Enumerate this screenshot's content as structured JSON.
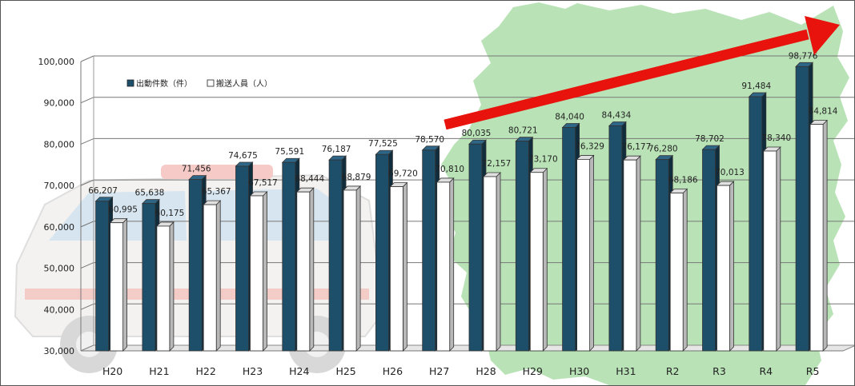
{
  "chart_data": {
    "type": "bar",
    "categories": [
      "H20",
      "H21",
      "H22",
      "H23",
      "H24",
      "H25",
      "H26",
      "H27",
      "H28",
      "H29",
      "H30",
      "H31",
      "R2",
      "R3",
      "R4",
      "R5"
    ],
    "series": [
      {
        "name": "出動件数（件）",
        "values": [
          66207,
          65638,
          71456,
          74675,
          75591,
          76187,
          77525,
          78570,
          80035,
          80721,
          84040,
          84434,
          76280,
          78702,
          91484,
          98776
        ],
        "labels": [
          "66,207",
          "65,638",
          "71,456",
          "74,675",
          "75,591",
          "76,187",
          "77,525",
          "78,570",
          "80,035",
          "80,721",
          "84,040",
          "84,434",
          "76,280",
          "78,702",
          "91,484",
          "98,776"
        ],
        "color": "#1d4f6b"
      },
      {
        "name": "搬送人員（人）",
        "values": [
          60995,
          60175,
          65367,
          67517,
          68444,
          68879,
          69720,
          70810,
          72157,
          73170,
          76329,
          76177,
          68186,
          70013,
          78340,
          84814
        ],
        "labels": [
          "60,995",
          "60,175",
          "65,367",
          "67,517",
          "68,444",
          "68,879",
          "69,720",
          "70,810",
          "72,157",
          "73,170",
          "76,329",
          "76,177",
          "68,186",
          "70,013",
          "78,340",
          "84,814"
        ],
        "color": "#ffffff"
      }
    ],
    "ylim": [
      30000,
      100000
    ],
    "yticks": [
      "30,000",
      "40,000",
      "50,000",
      "60,000",
      "70,000",
      "80,000",
      "90,000",
      "100,000"
    ],
    "grid": true,
    "legend": "top-left",
    "trend_arrow_color": "#e8130c",
    "background_map_color": "#b9e3b6"
  }
}
